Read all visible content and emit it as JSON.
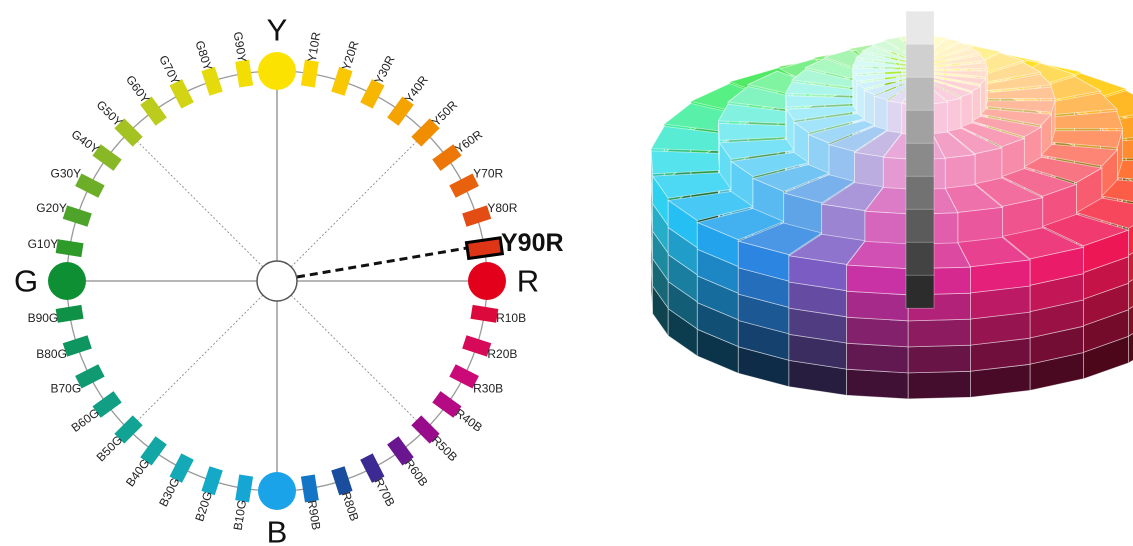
{
  "hue_circle": {
    "primaries": [
      {
        "label": "Y",
        "angle": 0,
        "color": "#fbe200"
      },
      {
        "label": "R",
        "angle": 90,
        "color": "#e3001b"
      },
      {
        "label": "B",
        "angle": 180,
        "color": "#1aa3e8"
      },
      {
        "label": "G",
        "angle": 270,
        "color": "#0f8f33"
      }
    ],
    "hues": [
      {
        "label": "Y10R",
        "angle": 9,
        "color": "#fbd600"
      },
      {
        "label": "Y20R",
        "angle": 18,
        "color": "#fac800"
      },
      {
        "label": "Y30R",
        "angle": 27,
        "color": "#f7b700"
      },
      {
        "label": "Y40R",
        "angle": 36,
        "color": "#f4a300"
      },
      {
        "label": "Y50R",
        "angle": 45,
        "color": "#f08e00"
      },
      {
        "label": "Y60R",
        "angle": 54,
        "color": "#ec7706"
      },
      {
        "label": "Y70R",
        "angle": 63,
        "color": "#e8620d"
      },
      {
        "label": "Y80R",
        "angle": 72,
        "color": "#e34c12"
      },
      {
        "label": "R10B",
        "angle": 99,
        "color": "#dc0a3c"
      },
      {
        "label": "R20B",
        "angle": 108,
        "color": "#d70a5a"
      },
      {
        "label": "R30B",
        "angle": 117,
        "color": "#c90a77"
      },
      {
        "label": "R40B",
        "angle": 126,
        "color": "#b40a84"
      },
      {
        "label": "R50B",
        "angle": 135,
        "color": "#980c8c"
      },
      {
        "label": "R60B",
        "angle": 144,
        "color": "#6a1690"
      },
      {
        "label": "R70B",
        "angle": 153,
        "color": "#3c2a92"
      },
      {
        "label": "R80B",
        "angle": 162,
        "color": "#1b4d9e"
      },
      {
        "label": "R90B",
        "angle": 171,
        "color": "#1275c6"
      },
      {
        "label": "B10G",
        "angle": 189,
        "color": "#15a6d4"
      },
      {
        "label": "B20G",
        "angle": 198,
        "color": "#14a9c6"
      },
      {
        "label": "B30G",
        "angle": 207,
        "color": "#13a9b6"
      },
      {
        "label": "B40G",
        "angle": 216,
        "color": "#12a7a4"
      },
      {
        "label": "B50G",
        "angle": 225,
        "color": "#11a394"
      },
      {
        "label": "B60G",
        "angle": 234,
        "color": "#109f84"
      },
      {
        "label": "B70G",
        "angle": 243,
        "color": "#0f9a72"
      },
      {
        "label": "B80G",
        "angle": 252,
        "color": "#0f9660"
      },
      {
        "label": "B90G",
        "angle": 261,
        "color": "#0f9248"
      },
      {
        "label": "G10Y",
        "angle": 279,
        "color": "#2e9a2a"
      },
      {
        "label": "G20Y",
        "angle": 288,
        "color": "#4ea42a"
      },
      {
        "label": "G30Y",
        "angle": 297,
        "color": "#6cae28"
      },
      {
        "label": "G40Y",
        "angle": 306,
        "color": "#88b826"
      },
      {
        "label": "G50Y",
        "angle": 315,
        "color": "#a4c222"
      },
      {
        "label": "G60Y",
        "angle": 324,
        "color": "#bccc1c"
      },
      {
        "label": "G70Y",
        "angle": 333,
        "color": "#d2d414"
      },
      {
        "label": "G80Y",
        "angle": 342,
        "color": "#e4da0c"
      },
      {
        "label": "G90Y",
        "angle": 351,
        "color": "#f2de04"
      }
    ],
    "highlight": {
      "label": "Y90R",
      "angle": 81,
      "color": "#dd3515"
    }
  },
  "solid": {
    "hue_palette": [
      "#ffef00",
      "#ffc300",
      "#ff8a00",
      "#ff4d1a",
      "#f0164f",
      "#e61e78",
      "#c832a5",
      "#1e8ce6",
      "#28c8f5",
      "#3ce6e6",
      "#3cf07a",
      "#2be02b"
    ]
  }
}
